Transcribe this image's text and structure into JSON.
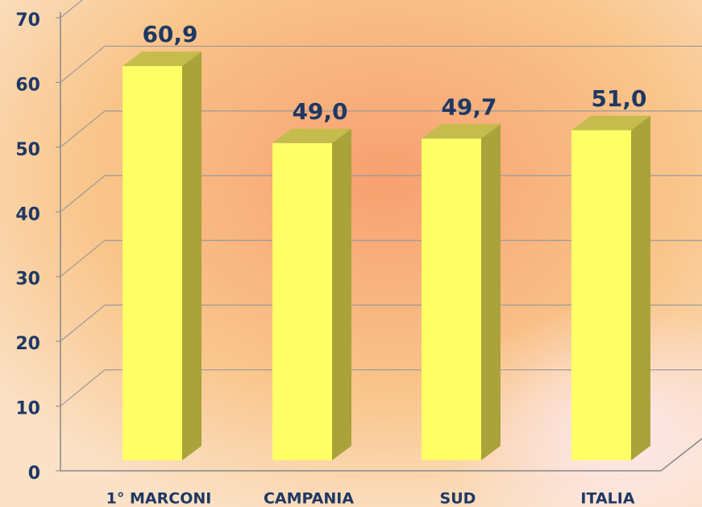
{
  "chart_data": {
    "type": "bar3d",
    "categories": [
      "1° MARCONI",
      "CAMPANIA",
      "SUD",
      "ITALIA"
    ],
    "values": [
      60.9,
      49.0,
      49.7,
      51.0
    ],
    "value_labels": [
      "60,9",
      "49,0",
      "49,7",
      "51,0"
    ],
    "color": "#ffff66",
    "ylim": [
      0,
      70
    ],
    "yticks": [
      0,
      10,
      20,
      30,
      40,
      50,
      60,
      70
    ],
    "grid": true
  }
}
